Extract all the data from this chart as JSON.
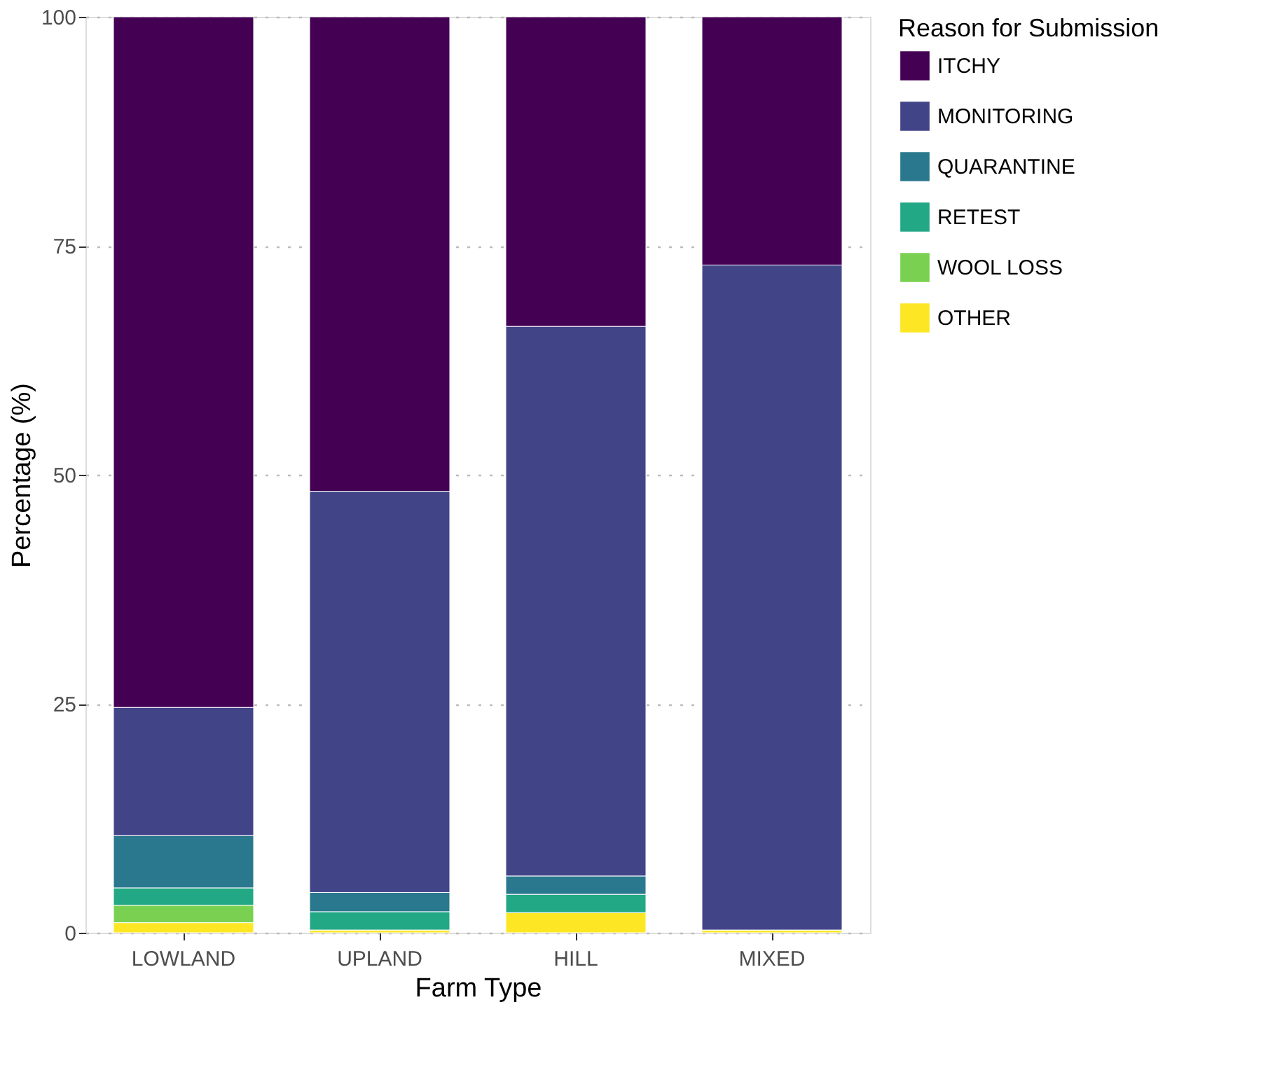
{
  "chart_data": {
    "type": "bar",
    "stacked": true,
    "xlabel": "Farm Type",
    "ylabel": "Percentage (%)",
    "legend_title": "Reason for Submission",
    "categories": [
      "LOWLAND",
      "UPLAND",
      "HILL",
      "MIXED"
    ],
    "series": [
      {
        "name": "OTHER",
        "color": "#fde725",
        "values": [
          1.1,
          0.3,
          2.2,
          0.3
        ]
      },
      {
        "name": "WOOL LOSS",
        "color": "#7ad151",
        "values": [
          1.9,
          0,
          0,
          0
        ]
      },
      {
        "name": "RETEST",
        "color": "#22a884",
        "values": [
          1.9,
          2.0,
          2.0,
          0
        ]
      },
      {
        "name": "QUARANTINE",
        "color": "#2a788e",
        "values": [
          5.7,
          2.1,
          2.0,
          0
        ]
      },
      {
        "name": "MONITORING",
        "color": "#414487",
        "values": [
          14.0,
          43.8,
          60.0,
          72.6
        ]
      },
      {
        "name": "ITCHY",
        "color": "#440154",
        "values": [
          75.4,
          51.8,
          33.8,
          27.1
        ]
      }
    ],
    "ylim": [
      0,
      100
    ],
    "yticks": [
      0,
      25,
      50,
      75,
      100
    ],
    "grid": "y",
    "legend": "right"
  }
}
